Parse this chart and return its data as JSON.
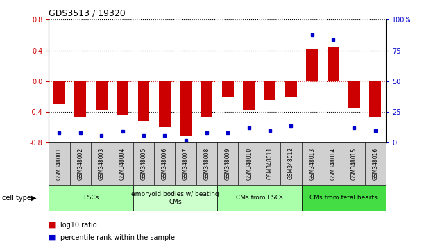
{
  "title": "GDS3513 / 19320",
  "samples": [
    "GSM348001",
    "GSM348002",
    "GSM348003",
    "GSM348004",
    "GSM348005",
    "GSM348006",
    "GSM348007",
    "GSM348008",
    "GSM348009",
    "GSM348010",
    "GSM348011",
    "GSM348012",
    "GSM348013",
    "GSM348014",
    "GSM348015",
    "GSM348016"
  ],
  "log10_ratio": [
    -0.3,
    -0.46,
    -0.37,
    -0.44,
    -0.52,
    -0.6,
    -0.72,
    -0.47,
    -0.2,
    -0.38,
    -0.25,
    -0.2,
    0.42,
    0.45,
    -0.35,
    -0.46
  ],
  "percentile_rank": [
    8,
    8,
    6,
    9,
    6,
    6,
    2,
    8,
    8,
    12,
    10,
    14,
    88,
    84,
    12,
    10
  ],
  "cell_type_groups": [
    {
      "label": "ESCs",
      "start": 0,
      "end": 3,
      "color": "#aaffaa"
    },
    {
      "label": "embryoid bodies w/ beating\nCMs",
      "start": 4,
      "end": 7,
      "color": "#ccffcc"
    },
    {
      "label": "CMs from ESCs",
      "start": 8,
      "end": 11,
      "color": "#aaffaa"
    },
    {
      "label": "CMs from fetal hearts",
      "start": 12,
      "end": 15,
      "color": "#44dd44"
    }
  ],
  "bar_color": "#cc0000",
  "dot_color": "#0000cc",
  "ylim_left": [
    -0.8,
    0.8
  ],
  "ylim_right": [
    0,
    100
  ],
  "yticks_left": [
    -0.8,
    -0.4,
    0.0,
    0.4,
    0.8
  ],
  "yticks_right": [
    0,
    25,
    50,
    75,
    100
  ],
  "legend_bar_label": "log10 ratio",
  "legend_dot_label": "percentile rank within the sample",
  "bar_label_color": "#cc0000",
  "dot_label_color": "#0000cc",
  "left_tick_color": "#cc0000",
  "right_tick_color": "#0000cc"
}
